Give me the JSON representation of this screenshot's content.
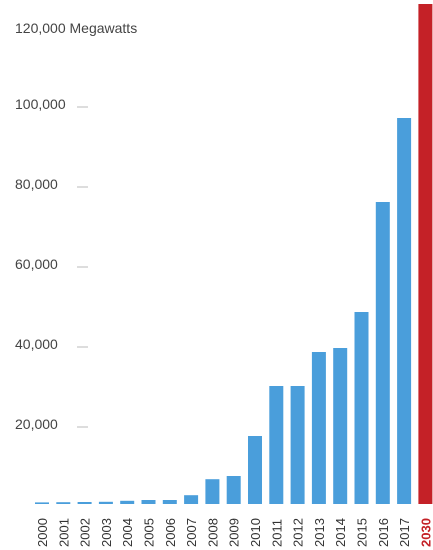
{
  "chart_data": {
    "type": "bar",
    "ylabel": "120,000 Megawatts",
    "categories": [
      "2000",
      "2001",
      "2002",
      "2003",
      "2004",
      "2005",
      "2006",
      "2007",
      "2008",
      "2009",
      "2010",
      "2011",
      "2012",
      "2013",
      "2014",
      "2015",
      "2016",
      "2017",
      "2030"
    ],
    "values": [
      400,
      450,
      500,
      550,
      800,
      1000,
      1000,
      2200,
      6200,
      7000,
      17000,
      29500,
      29500,
      38000,
      39000,
      48000,
      75500,
      96500,
      125000
    ],
    "highlight_category": "2030",
    "yticks": [
      {
        "value": 20000,
        "label": "20,000"
      },
      {
        "value": 40000,
        "label": "40,000"
      },
      {
        "value": 60000,
        "label": "60,000"
      },
      {
        "value": 80000,
        "label": "80,000"
      },
      {
        "value": 100000,
        "label": "100,000"
      }
    ],
    "ylim": [
      0,
      120000
    ],
    "grid": false,
    "colors": {
      "bar": "#4a9edb",
      "highlight": "#c42127",
      "tick": "#bbbbbb"
    }
  }
}
